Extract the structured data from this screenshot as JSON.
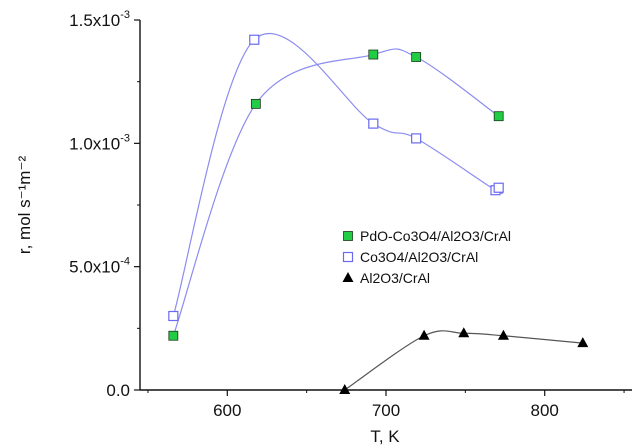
{
  "chart_data": {
    "type": "scatter",
    "title": "",
    "xlabel": "T, K",
    "ylabel": "r, mol s⁻¹m⁻²",
    "xlim": [
      545,
      855
    ],
    "ylim": [
      0,
      0.0015
    ],
    "x_ticks": [
      {
        "value": 600,
        "label": "600"
      },
      {
        "value": 700,
        "label": "700"
      },
      {
        "value": 800,
        "label": "800"
      }
    ],
    "y_ticks": [
      {
        "value": 0,
        "mant": "0.0",
        "exp": ""
      },
      {
        "value": 0.0005,
        "mant": "5.0x10",
        "exp": "-4"
      },
      {
        "value": 0.001,
        "mant": "1.0x10",
        "exp": "-3"
      },
      {
        "value": 0.0015,
        "mant": "1.5x10",
        "exp": "-3"
      }
    ],
    "legend_position": "right",
    "series": [
      {
        "name": "PdO-Co3O4/Al2O3/CrAl",
        "marker": "square-filled",
        "color": "#22cc44",
        "edge": "#1a3a1a",
        "line_color": "#8c8cf0",
        "x": [
          566,
          618,
          692,
          719,
          771
        ],
        "y": [
          0.00022,
          0.00116,
          0.00136,
          0.00135,
          0.00111
        ]
      },
      {
        "name": "Co3O4/Al2O3/CrAl",
        "marker": "square-open",
        "color": "#6a6af0",
        "line_color": "#8c8cf0",
        "x": [
          566,
          617,
          692,
          719,
          769,
          771
        ],
        "y": [
          0.0003,
          0.00142,
          0.00108,
          0.00102,
          0.00081,
          0.00082
        ]
      },
      {
        "name": "Al2O3/CrAl",
        "marker": "triangle-filled",
        "color": "#000000",
        "line_color": "#555555",
        "x": [
          674,
          724,
          749,
          774,
          824
        ],
        "y": [
          0.0,
          0.00022,
          0.00023,
          0.00022,
          0.00019
        ]
      }
    ]
  }
}
